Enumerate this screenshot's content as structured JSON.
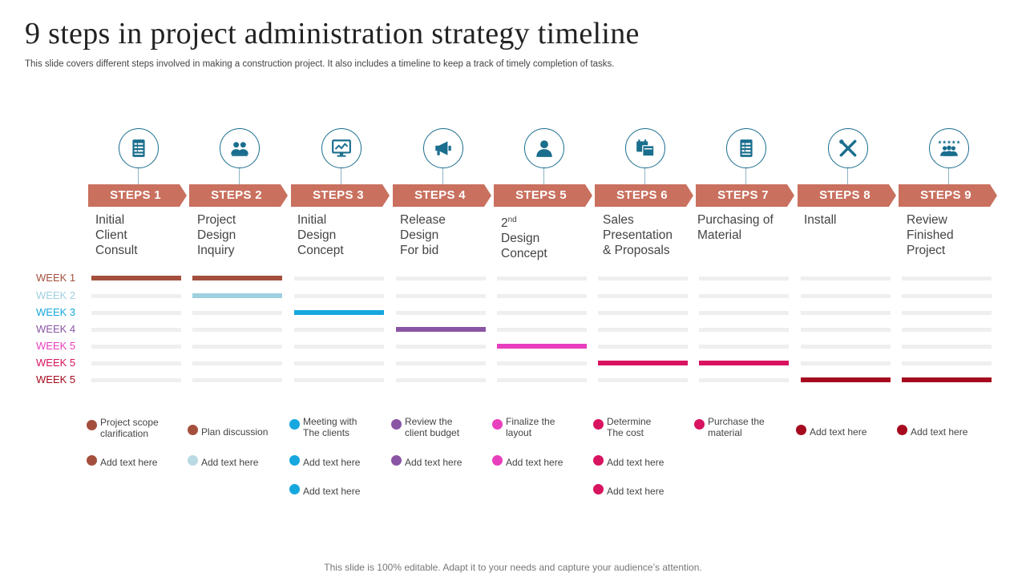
{
  "slide": {
    "title": "9 steps in project administration strategy timeline",
    "subtitle": "This slide covers different steps involved in making a construction project. It also includes a timeline to keep a track of timely completion of tasks.",
    "footer": "This slide is 100% editable. Adapt it to your needs and capture your audience’s attention."
  },
  "colors": {
    "step_banner": "#c9705f",
    "icon": "#1a6e8e",
    "bar_track": "#efefef"
  },
  "weeks": [
    {
      "label": "WEEK 1",
      "color": "#a44f3d"
    },
    {
      "label": "WEEK 2",
      "color": "#9fd0e0"
    },
    {
      "label": "WEEK 3",
      "color": "#16a7df"
    },
    {
      "label": "WEEK 4",
      "color": "#8a55a4"
    },
    {
      "label": "WEEK 5",
      "color": "#e83fbe"
    },
    {
      "label": "WEEK 5",
      "color": "#d8135f"
    },
    {
      "label": "WEEK 5",
      "color": "#a60a1e"
    }
  ],
  "steps": [
    {
      "label": "STEPS 1",
      "icon": "clipboard-list-icon",
      "desc": "Initial\nClient\nConsult",
      "active_week": [
        0
      ],
      "bullets": [
        {
          "text": "Project scope\nclarification",
          "color": "#a44f3d"
        },
        {
          "text": "Add text here",
          "color": "#a44f3d"
        }
      ]
    },
    {
      "label": "STEPS 2",
      "icon": "group-icon",
      "desc": "Project\nDesign\nInquiry",
      "active_week": [
        0,
        1
      ],
      "bullets": [
        {
          "text": "Plan discussion",
          "color": "#a44f3d"
        },
        {
          "text": "Add text here",
          "color": "#b9d9e4"
        }
      ]
    },
    {
      "label": "STEPS 3",
      "icon": "monitor-chart-icon",
      "desc": "Initial\nDesign\nConcept",
      "active_week": [
        2
      ],
      "bullets": [
        {
          "text": "Meeting with\nThe clients",
          "color": "#16a7df"
        },
        {
          "text": "Add text here",
          "color": "#16a7df"
        },
        {
          "text": "Add text here",
          "color": "#16a7df"
        }
      ]
    },
    {
      "label": "STEPS 4",
      "icon": "megaphone-icon",
      "desc": "Release\nDesign\nFor bid",
      "active_week": [
        3
      ],
      "bullets": [
        {
          "text": "Review the\nclient budget",
          "color": "#8a55a4"
        },
        {
          "text": "Add text here",
          "color": "#8a55a4"
        }
      ]
    },
    {
      "label": "STEPS 5",
      "icon": "person-icon",
      "desc_main": "2",
      "desc_sup": "nd",
      "desc_rest": "Design\nConcept",
      "active_week": [
        4
      ],
      "bullets": [
        {
          "text": "Finalize the\nlayout",
          "color": "#e83fbe"
        },
        {
          "text": "Add text here",
          "color": "#e83fbe"
        }
      ]
    },
    {
      "label": "STEPS 6",
      "icon": "calendar-docs-icon",
      "desc": "Sales\nPresentation\n& Proposals",
      "active_week": [
        5
      ],
      "bullets": [
        {
          "text": "Determine\n The cost",
          "color": "#d8135f"
        },
        {
          "text": "Add text here",
          "color": "#d8135f"
        },
        {
          "text": "Add text here",
          "color": "#d8135f"
        }
      ]
    },
    {
      "label": "STEPS 7",
      "icon": "clipboard-list-icon",
      "desc": "Purchasing of\nMaterial",
      "active_week": [
        5
      ],
      "bullets": [
        {
          "text": "Purchase the\nmaterial",
          "color": "#d8135f"
        }
      ]
    },
    {
      "label": "STEPS 8",
      "icon": "tools-cross-icon",
      "desc": "Install",
      "active_week": [
        6
      ],
      "bullets": [
        {
          "text": "Add text here",
          "color": "#a60a1e"
        }
      ]
    },
    {
      "label": "STEPS 9",
      "icon": "team-stars-icon",
      "desc": "Review\nFinished\nProject",
      "active_week": [
        6
      ],
      "bullets": [
        {
          "text": "Add text here",
          "color": "#a60a1e"
        }
      ]
    }
  ]
}
